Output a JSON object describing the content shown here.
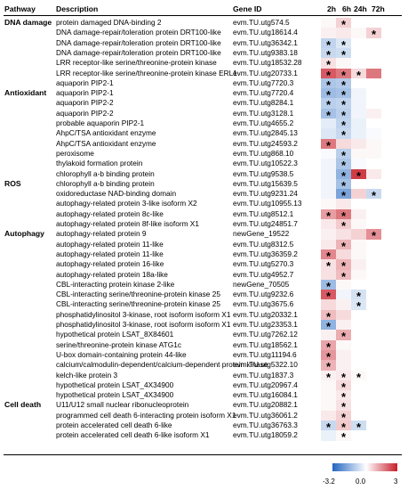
{
  "headers": {
    "pathway": "Pathway",
    "description": "Description",
    "gene": "Gene ID",
    "cols": [
      "2h",
      "6h",
      "24h",
      "72h"
    ]
  },
  "groups": [
    {
      "label": "DNA damage",
      "row": 0
    },
    {
      "label": "Antioxidant",
      "row": 7
    },
    {
      "label": "ROS",
      "row": 16
    },
    {
      "label": "Autophagy",
      "row": 21
    },
    {
      "label": "Cell death",
      "row": 38
    }
  ],
  "colors": {
    "neg": "#2166c0",
    "mid": "#ffffff",
    "pos": "#c81e2a"
  },
  "chart_data": {
    "type": "heatmap",
    "columns": [
      "2h",
      "6h",
      "24h",
      "72h"
    ],
    "scale": {
      "min": -3.2,
      "mid": 0.0,
      "max": 3,
      "tick_labels": [
        "-3.2",
        "0.0",
        "3"
      ]
    },
    "rows": [
      {
        "description": "protein damaged DNA-binding 2",
        "gene": "evm.TU.utg574.5",
        "values": [
          0.1,
          0.6,
          0.0,
          0.0
        ],
        "stars": [
          0,
          1,
          0,
          0
        ]
      },
      {
        "description": "DNA damage-repair/toleration protein DRT100-like",
        "gene": "evm.TU.utg18614.4",
        "values": [
          0.2,
          0.3,
          0.1,
          0.6
        ],
        "stars": [
          0,
          0,
          0,
          1
        ]
      },
      {
        "description": "DNA damage-repair/toleration protein DRT100-like",
        "gene": "evm.TU.utg36342.1",
        "values": [
          -0.9,
          -0.5,
          0.0,
          0.0
        ],
        "stars": [
          1,
          1,
          0,
          0
        ]
      },
      {
        "description": "DNA damage-repair/toleration protein DRT100-like",
        "gene": "evm.TU.utg9383.18",
        "values": [
          -0.8,
          -0.7,
          0.0,
          0.0
        ],
        "stars": [
          1,
          1,
          0,
          0
        ]
      },
      {
        "description": "LRR receptor-like serine/threonine-protein kinase",
        "gene": "evm.TU.utg18532.28",
        "values": [
          0.4,
          0.1,
          0.0,
          0.0
        ],
        "stars": [
          1,
          0,
          0,
          0
        ]
      },
      {
        "description": "LRR receptor-like serine/threonine-protein kinase ERL1",
        "gene": "evm.TU.utg20733.1",
        "values": [
          2.2,
          1.8,
          0.5,
          1.8
        ],
        "stars": [
          1,
          1,
          1,
          0
        ]
      },
      {
        "description": "aquaporin PIP2-1",
        "gene": "evm.TU.utg7720.3",
        "values": [
          -1.2,
          -1.1,
          0.0,
          0.0
        ],
        "stars": [
          1,
          1,
          0,
          0
        ]
      },
      {
        "description": "aquaporin PIP2-1",
        "gene": "evm.TU.utg7720.4",
        "values": [
          -1.4,
          -1.3,
          -0.2,
          0.0
        ],
        "stars": [
          1,
          1,
          0,
          0
        ]
      },
      {
        "description": "aquaporin PIP2-2",
        "gene": "evm.TU.utg8284.1",
        "values": [
          -1.0,
          -0.9,
          -0.2,
          0.0
        ],
        "stars": [
          1,
          1,
          0,
          0
        ]
      },
      {
        "description": "aquaporin PIP2-2",
        "gene": "evm.TU.utg3128.1",
        "values": [
          -1.3,
          -1.0,
          -0.2,
          0.2
        ],
        "stars": [
          1,
          1,
          0,
          0
        ]
      },
      {
        "description": "probable aquaporin PIP2-1",
        "gene": "evm.TU.utg4655.2",
        "values": [
          -0.4,
          -0.9,
          -0.3,
          0.0
        ],
        "stars": [
          0,
          1,
          0,
          0
        ]
      },
      {
        "description": "AhpC/TSA antioxidant enzyme",
        "gene": "evm.TU.utg2845.13",
        "values": [
          -0.5,
          -0.8,
          -0.3,
          -0.1
        ],
        "stars": [
          0,
          1,
          0,
          0
        ]
      },
      {
        "description": "AhpC/TSA antioxidant enzyme",
        "gene": "evm.TU.utg24593.2",
        "values": [
          1.8,
          0.5,
          0.3,
          0.1
        ],
        "stars": [
          1,
          0,
          0,
          0
        ]
      },
      {
        "description": "peroxisome",
        "gene": "evm.TU.utg868.10",
        "values": [
          -0.1,
          -1.0,
          0.1,
          0.1
        ],
        "stars": [
          0,
          1,
          0,
          0
        ]
      },
      {
        "description": "thylakoid formation protein",
        "gene": "evm.TU.utg10522.3",
        "values": [
          -0.2,
          -1.2,
          -0.1,
          0.0
        ],
        "stars": [
          0,
          1,
          0,
          0
        ]
      },
      {
        "description": "chlorophyll a-b binding protein",
        "gene": "evm.TU.utg9538.5",
        "values": [
          -0.2,
          -1.6,
          2.6,
          0.3
        ],
        "stars": [
          0,
          1,
          1,
          0
        ]
      },
      {
        "description": "chlorophyll a-b binding protein",
        "gene": "evm.TU.utg15639.5",
        "values": [
          -0.2,
          -1.3,
          0.0,
          0.0
        ],
        "stars": [
          0,
          1,
          0,
          0
        ]
      },
      {
        "description": "oxidoreductase NAD-binding domain",
        "gene": "evm.TU.utg9231.24",
        "values": [
          -0.2,
          -1.9,
          0.6,
          -0.8
        ],
        "stars": [
          0,
          1,
          0,
          1
        ]
      },
      {
        "description": "autophagy-related protein 3-like isoform X2",
        "gene": "evm.TU.utg10955.13",
        "values": [
          0.1,
          0.3,
          0.0,
          0.0
        ],
        "stars": [
          0,
          0,
          0,
          0
        ]
      },
      {
        "description": "autophagy-related protein 8c-like",
        "gene": "evm.TU.utg8512.1",
        "values": [
          1.3,
          1.8,
          0.2,
          0.0
        ],
        "stars": [
          1,
          1,
          0,
          0
        ]
      },
      {
        "description": "autophagy-related protein 8f-like isoform X1",
        "gene": "evm.TU.utg24851.7",
        "values": [
          0.3,
          0.7,
          0.1,
          0.0
        ],
        "stars": [
          0,
          1,
          0,
          0
        ]
      },
      {
        "description": "autophagy-related protein 9",
        "gene": "newGene_19522",
        "values": [
          0.2,
          0.4,
          0.6,
          1.5
        ],
        "stars": [
          0,
          0,
          0,
          1
        ]
      },
      {
        "description": "autophagy-related protein 11-like",
        "gene": "evm.TU.utg8312.5",
        "values": [
          0.3,
          1.0,
          0.1,
          0.0
        ],
        "stars": [
          0,
          1,
          0,
          0
        ]
      },
      {
        "description": "autophagy-related protein 11-like",
        "gene": "evm.TU.utg36359.2",
        "values": [
          1.6,
          0.5,
          0.1,
          0.0
        ],
        "stars": [
          1,
          0,
          0,
          0
        ]
      },
      {
        "description": "autophagy-related protein 16-like",
        "gene": "evm.TU.utg5270.3",
        "values": [
          0.4,
          1.0,
          0.2,
          0.0
        ],
        "stars": [
          1,
          1,
          0,
          0
        ]
      },
      {
        "description": "autophagy-related protein 18a-like",
        "gene": "evm.TU.utg4952.7",
        "values": [
          0.4,
          0.9,
          0.1,
          0.0
        ],
        "stars": [
          0,
          1,
          0,
          0
        ]
      },
      {
        "description": "CBL-interacting protein kinase 2-like",
        "gene": "newGene_70505",
        "values": [
          -1.4,
          0.1,
          0.0,
          0.0
        ],
        "stars": [
          1,
          0,
          0,
          0
        ]
      },
      {
        "description": "CBL-interacting serine/threonine-protein kinase 25",
        "gene": "evm.TU.utg9232.6",
        "values": [
          2.2,
          -0.2,
          -0.6,
          0.0
        ],
        "stars": [
          1,
          0,
          1,
          0
        ]
      },
      {
        "description": "CBL-interacting serine/threonine-protein kinase 25",
        "gene": "evm.TU.utg3675.6",
        "values": [
          0.5,
          0.2,
          -0.5,
          0.0
        ],
        "stars": [
          0,
          0,
          1,
          0
        ]
      },
      {
        "description": "phosphatidylinositol 3-kinase, root isoform isoform X1",
        "gene": "evm.TU.utg20332.1",
        "values": [
          0.9,
          0.5,
          0.0,
          0.0
        ],
        "stars": [
          1,
          0,
          0,
          0
        ]
      },
      {
        "description": "phosphatidylinositol 3-kinase, root isoform isoform X1",
        "gene": "evm.TU.utg23353.1",
        "values": [
          -1.6,
          0.2,
          0.0,
          0.0
        ],
        "stars": [
          1,
          0,
          0,
          0
        ]
      },
      {
        "description": "hypothetical protein LSAT_8X84601",
        "gene": "evm.TU.utg7262.12",
        "values": [
          0.2,
          1.1,
          0.0,
          0.0
        ],
        "stars": [
          0,
          1,
          0,
          0
        ]
      },
      {
        "description": "serine/threonine-protein kinase ATG1c",
        "gene": "evm.TU.utg18562.1",
        "values": [
          1.2,
          0.1,
          0.0,
          0.0
        ],
        "stars": [
          1,
          0,
          0,
          0
        ]
      },
      {
        "description": "U-box domain-containing protein 44-like",
        "gene": "evm.TU.utg11194.6",
        "values": [
          1.4,
          0.2,
          0.0,
          0.0
        ],
        "stars": [
          1,
          0,
          0,
          0
        ]
      },
      {
        "description": "calcium/calmodulin-dependent/calcium-dependent protein kinase",
        "gene": "evm.TU.utg5322.10",
        "values": [
          1.0,
          0.2,
          0.0,
          0.0
        ],
        "stars": [
          1,
          0,
          0,
          0
        ]
      },
      {
        "description": "kelch-like protein 3",
        "gene": "evm.TU.utg1837.3",
        "values": [
          0.2,
          0.3,
          0.1,
          0.0
        ],
        "stars": [
          1,
          1,
          1,
          0
        ]
      },
      {
        "description": "hypothetical protein LSAT_4X34900",
        "gene": "evm.TU.utg20967.4",
        "values": [
          0.1,
          0.5,
          0.0,
          0.0
        ],
        "stars": [
          0,
          1,
          0,
          0
        ]
      },
      {
        "description": "hypothetical protein LSAT_4X34900",
        "gene": "evm.TU.utg16084.1",
        "values": [
          0.1,
          0.3,
          0.0,
          0.0
        ],
        "stars": [
          0,
          1,
          0,
          0
        ]
      },
      {
        "description": "U11/U12 small nuclear ribonucleoprotein",
        "gene": "evm.TU.utg20882.1",
        "values": [
          0.1,
          0.4,
          0.0,
          0.0
        ],
        "stars": [
          0,
          1,
          0,
          0
        ]
      },
      {
        "description": "programmed cell death 6-interacting protein isoform X1",
        "gene": "evm.TU.utg36061.2",
        "values": [
          0.3,
          0.6,
          0.0,
          0.0
        ],
        "stars": [
          0,
          1,
          0,
          0
        ]
      },
      {
        "description": "protein accelerated cell death 6-like",
        "gene": "evm.TU.utg36763.3",
        "values": [
          -0.8,
          0.7,
          -0.7,
          0.0
        ],
        "stars": [
          1,
          1,
          1,
          0
        ]
      },
      {
        "description": "protein accelerated cell death 6-like isoform X1",
        "gene": "evm.TU.utg18059.2",
        "values": [
          -0.3,
          0.1,
          0.0,
          0.0
        ],
        "stars": [
          0,
          1,
          0,
          0
        ]
      }
    ]
  }
}
